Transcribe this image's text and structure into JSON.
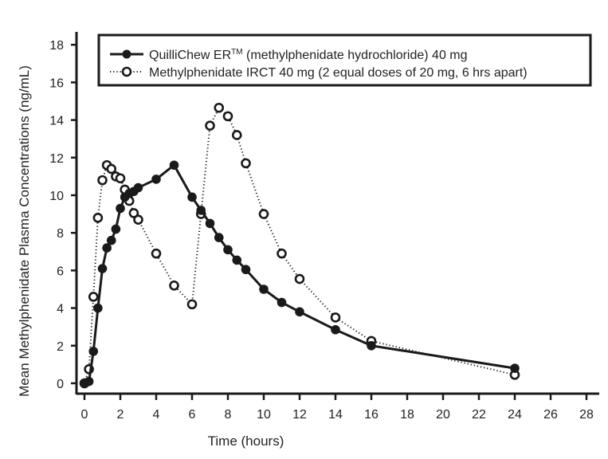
{
  "chart_data": {
    "type": "line",
    "title": "",
    "xlabel": "Time (hours)",
    "ylabel": "Mean Methylphenidate Plasma Concentrations (ng/mL)",
    "xlim": [
      0,
      28
    ],
    "ylim": [
      0,
      18
    ],
    "xticks": [
      0,
      2,
      4,
      6,
      8,
      10,
      12,
      14,
      16,
      18,
      20,
      22,
      24,
      26,
      28
    ],
    "yticks": [
      0,
      2,
      4,
      6,
      8,
      10,
      12,
      14,
      16,
      18
    ],
    "grid": false,
    "legend_position": "top",
    "series": [
      {
        "name": "QuilliChew ER™ (methylphenidate hydrochloride) 40 mg",
        "legend_main": "QuilliChew ER",
        "legend_sup": "TM",
        "legend_rest": " (methylphenidate hydrochloride) 40 mg",
        "style": "solid-filled",
        "color": "#1a1a1a",
        "x": [
          0,
          0.25,
          0.5,
          0.75,
          1,
          1.25,
          1.5,
          1.75,
          2,
          2.25,
          2.5,
          2.75,
          3,
          4,
          5,
          6,
          6.5,
          7,
          7.5,
          8,
          8.5,
          9,
          10,
          11,
          12,
          14,
          16,
          24
        ],
        "values": [
          0,
          0.1,
          1.7,
          4.0,
          6.1,
          7.2,
          7.6,
          8.2,
          9.3,
          9.9,
          10.1,
          10.2,
          10.4,
          10.85,
          11.6,
          9.9,
          9.2,
          8.5,
          7.75,
          7.1,
          6.55,
          6.05,
          5.0,
          4.3,
          3.8,
          2.85,
          2.0,
          0.8
        ]
      },
      {
        "name": "Methylphenidate IRCT 40 mg (2 equal doses of 20 mg, 6 hrs apart)",
        "legend_main": "Methylphenidate IRCT 40 mg (2 equal doses of 20 mg, 6 hrs apart)",
        "style": "dotted-open",
        "color": "#1a1a1a",
        "x": [
          0,
          0.25,
          0.5,
          0.75,
          1,
          1.25,
          1.5,
          1.75,
          2,
          2.25,
          2.5,
          2.75,
          3,
          4,
          5,
          6,
          6.5,
          7,
          7.5,
          8,
          8.5,
          9,
          10,
          11,
          12,
          14,
          16,
          24
        ],
        "values": [
          0,
          0.75,
          4.6,
          8.8,
          10.8,
          11.6,
          11.4,
          11.0,
          10.9,
          10.3,
          9.7,
          9.05,
          8.7,
          6.9,
          5.2,
          4.2,
          9.0,
          13.7,
          14.65,
          14.2,
          13.2,
          11.7,
          9.0,
          6.9,
          5.55,
          3.5,
          2.25,
          0.45
        ]
      }
    ]
  }
}
